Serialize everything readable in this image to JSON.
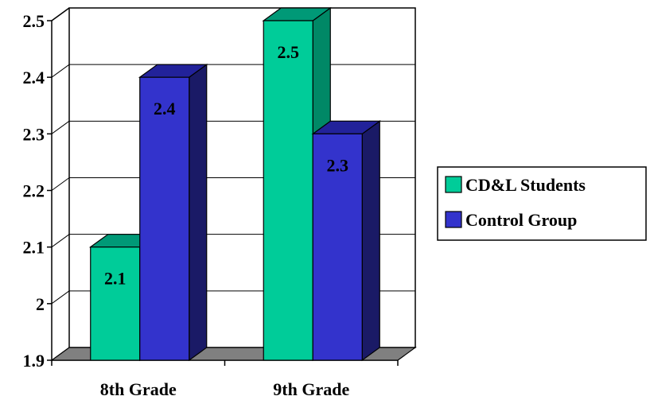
{
  "chart_data": {
    "type": "bar",
    "title": "",
    "xlabel": "",
    "ylabel": "",
    "categories": [
      "8th Grade",
      "9th Grade"
    ],
    "series": [
      {
        "name": "CD&L Students",
        "values": [
          2.1,
          2.5
        ]
      },
      {
        "name": "Control Group",
        "values": [
          2.4,
          2.3
        ]
      }
    ],
    "ylim": [
      1.9,
      2.5
    ],
    "yticks": [
      "1.9",
      "2",
      "2.1",
      "2.2",
      "2.3",
      "2.4",
      "2.5"
    ],
    "data_labels": [
      [
        "2.1",
        "2.5"
      ],
      [
        "2.4",
        "2.3"
      ]
    ],
    "grid": true,
    "style": "3d",
    "legend_position": "right",
    "colors": {
      "series": [
        "#00CC99",
        "#3333CC"
      ],
      "series_side": [
        "#008866",
        "#1A1A66"
      ],
      "series_top": [
        "#009977",
        "#22229A"
      ],
      "floor": "#808080"
    }
  }
}
